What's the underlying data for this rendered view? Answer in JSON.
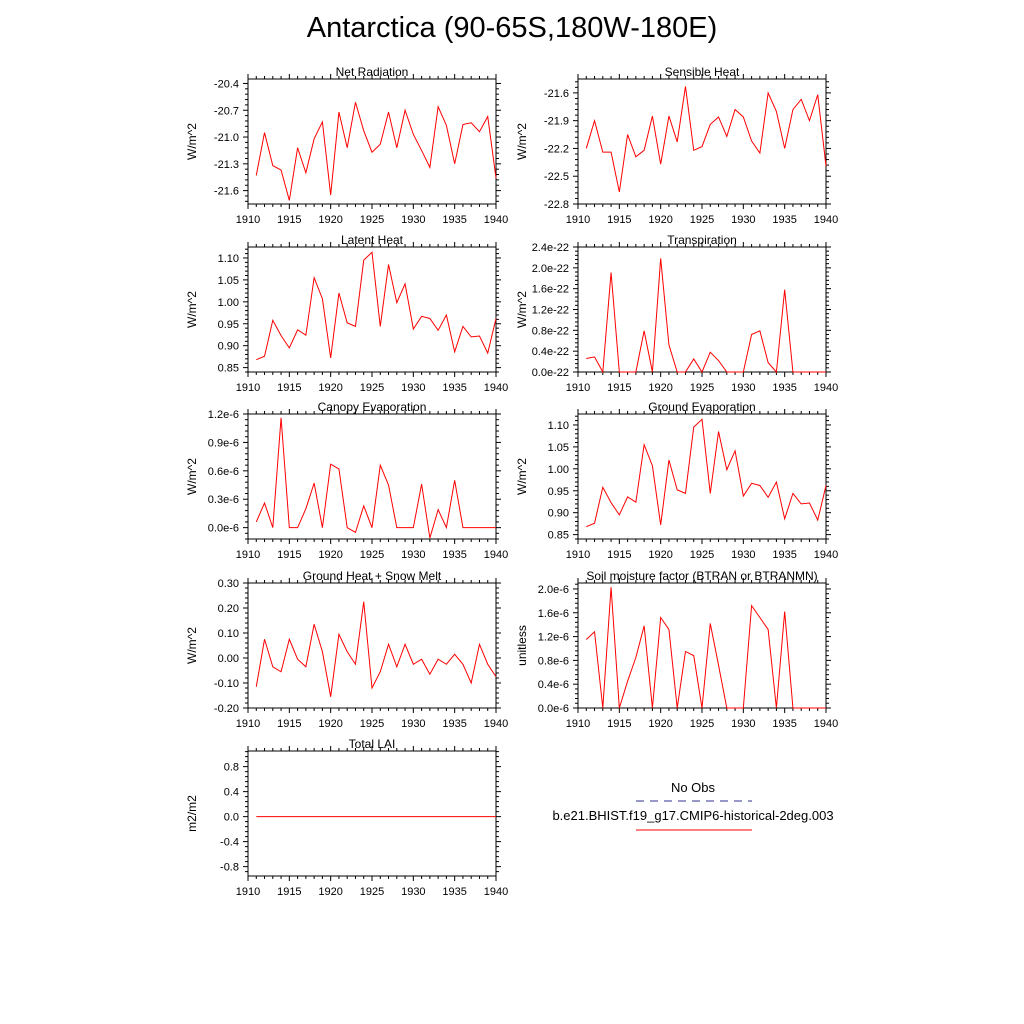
{
  "title": "Antarctica (90-65S,180W-180E)",
  "colors": {
    "model": "#ff0000",
    "obs": "#5a5aa8",
    "axis": "#000000"
  },
  "legend": {
    "obs_label": "No Obs",
    "model_label": "b.e21.BHIST.f19_g17.CMIP6-historical-2deg.003"
  },
  "chart_data": [
    {
      "type": "line",
      "title": "Net Radiation",
      "ylabel": "W/m^2",
      "xlim": [
        1910,
        1940
      ],
      "ylim": [
        -21.75,
        -20.35
      ],
      "xticks": [
        1910,
        1915,
        1920,
        1925,
        1930,
        1935,
        1940
      ],
      "yticks": [
        -21.6,
        -21.3,
        -21.0,
        -20.7,
        -20.4
      ],
      "ytick_labels": [
        "-21.6",
        "-21.3",
        "-21.0",
        "-20.7",
        "-20.4"
      ],
      "x": [
        1911,
        1912,
        1913,
        1914,
        1915,
        1916,
        1917,
        1918,
        1919,
        1920,
        1921,
        1922,
        1923,
        1924,
        1925,
        1926,
        1927,
        1928,
        1929,
        1930,
        1931,
        1932,
        1933,
        1934,
        1935,
        1936,
        1937,
        1938,
        1939,
        1940
      ],
      "series": [
        {
          "values": [
            -21.43,
            -20.95,
            -21.32,
            -21.37,
            -21.71,
            -21.12,
            -21.4,
            -21.02,
            -20.83,
            -21.65,
            -20.72,
            -21.12,
            -20.61,
            -20.93,
            -21.17,
            -21.08,
            -20.72,
            -21.12,
            -20.7,
            -20.97,
            -21.15,
            -21.34,
            -20.66,
            -20.87,
            -21.3,
            -20.86,
            -20.84,
            -20.94,
            -20.77,
            -21.46
          ]
        }
      ]
    },
    {
      "type": "line",
      "title": "Sensible Heat",
      "ylabel": "W/m^2",
      "xlim": [
        1910,
        1940
      ],
      "ylim": [
        -22.8,
        -21.45
      ],
      "xticks": [
        1910,
        1915,
        1920,
        1925,
        1930,
        1935,
        1940
      ],
      "yticks": [
        -22.8,
        -22.5,
        -22.2,
        -21.9,
        -21.6
      ],
      "ytick_labels": [
        "-22.8",
        "-22.5",
        "-22.2",
        "-21.9",
        "-21.6"
      ],
      "x": [
        1911,
        1912,
        1913,
        1914,
        1915,
        1916,
        1917,
        1918,
        1919,
        1920,
        1921,
        1922,
        1923,
        1924,
        1925,
        1926,
        1927,
        1928,
        1929,
        1930,
        1931,
        1932,
        1933,
        1934,
        1935,
        1936,
        1937,
        1938,
        1939,
        1940
      ],
      "series": [
        {
          "values": [
            -22.2,
            -21.9,
            -22.24,
            -22.24,
            -22.67,
            -22.05,
            -22.29,
            -22.22,
            -21.85,
            -22.37,
            -21.85,
            -22.13,
            -21.53,
            -22.22,
            -22.18,
            -21.94,
            -21.86,
            -22.07,
            -21.78,
            -21.86,
            -22.12,
            -22.25,
            -21.6,
            -21.8,
            -22.2,
            -21.78,
            -21.67,
            -21.9,
            -21.62,
            -22.39
          ]
        }
      ]
    },
    {
      "type": "line",
      "title": "Latent Heat",
      "ylabel": "W/m^2",
      "xlim": [
        1910,
        1940
      ],
      "ylim": [
        0.84,
        1.125
      ],
      "xticks": [
        1910,
        1915,
        1920,
        1925,
        1930,
        1935,
        1940
      ],
      "yticks": [
        0.85,
        0.9,
        0.95,
        1.0,
        1.05,
        1.1
      ],
      "ytick_labels": [
        "0.85",
        "0.90",
        "0.95",
        "1.00",
        "1.05",
        "1.10"
      ],
      "x": [
        1911,
        1912,
        1913,
        1914,
        1915,
        1916,
        1917,
        1918,
        1919,
        1920,
        1921,
        1922,
        1923,
        1924,
        1925,
        1926,
        1927,
        1928,
        1929,
        1930,
        1931,
        1932,
        1933,
        1934,
        1935,
        1936,
        1937,
        1938,
        1939,
        1940
      ],
      "series": [
        {
          "values": [
            0.868,
            0.876,
            0.958,
            0.923,
            0.895,
            0.936,
            0.924,
            1.055,
            1.007,
            0.872,
            1.02,
            0.952,
            0.944,
            1.095,
            1.113,
            0.944,
            1.085,
            0.998,
            1.041,
            0.938,
            0.967,
            0.962,
            0.935,
            0.97,
            0.886,
            0.944,
            0.92,
            0.922,
            0.883,
            0.962
          ]
        }
      ]
    },
    {
      "type": "line",
      "title": "Transpiration",
      "ylabel": "W/m^2",
      "xlim": [
        1910,
        1940
      ],
      "ylim": [
        0,
        2.4
      ],
      "y_unit_suffix": "e-22",
      "xticks": [
        1910,
        1915,
        1920,
        1925,
        1930,
        1935,
        1940
      ],
      "yticks": [
        0.0,
        0.4,
        0.8,
        1.2,
        1.6,
        2.0,
        2.4
      ],
      "ytick_labels": [
        "0.0e-22",
        "0.4e-22",
        "0.8e-22",
        "1.2e-22",
        "1.6e-22",
        "2.0e-22",
        "2.4e-22"
      ],
      "x": [
        1911,
        1912,
        1913,
        1914,
        1915,
        1916,
        1917,
        1918,
        1919,
        1920,
        1921,
        1922,
        1923,
        1924,
        1925,
        1926,
        1927,
        1928,
        1929,
        1930,
        1931,
        1932,
        1933,
        1934,
        1935,
        1936,
        1937,
        1938,
        1939,
        1940
      ],
      "series": [
        {
          "values": [
            0.26,
            0.29,
            0.0,
            1.91,
            0.0,
            0.0,
            0.0,
            0.79,
            0.0,
            2.18,
            0.52,
            0.0,
            0.0,
            0.25,
            0.0,
            0.38,
            0.22,
            0.0,
            0.0,
            0.0,
            0.72,
            0.79,
            0.18,
            0.0,
            1.58,
            0.0,
            0.0,
            0.0,
            0.0,
            0.0
          ]
        }
      ]
    },
    {
      "type": "line",
      "title": "Canopy Evaporation",
      "ylabel": "W/m^2",
      "xlim": [
        1910,
        1940
      ],
      "ylim": [
        -0.12,
        1.2
      ],
      "y_unit_suffix": "e-6",
      "xticks": [
        1910,
        1915,
        1920,
        1925,
        1930,
        1935,
        1940
      ],
      "yticks": [
        0.0,
        0.3,
        0.6,
        0.9,
        1.2
      ],
      "ytick_labels": [
        "0.0e-6",
        "0.3e-6",
        "0.6e-6",
        "0.9e-6",
        "1.2e-6"
      ],
      "x": [
        1911,
        1912,
        1913,
        1914,
        1915,
        1916,
        1917,
        1918,
        1919,
        1920,
        1921,
        1922,
        1923,
        1924,
        1925,
        1926,
        1927,
        1928,
        1929,
        1930,
        1931,
        1932,
        1933,
        1934,
        1935,
        1936,
        1937,
        1938,
        1939,
        1940
      ],
      "series": [
        {
          "values": [
            0.06,
            0.26,
            0.0,
            1.16,
            0.0,
            0.0,
            0.2,
            0.47,
            0.0,
            0.67,
            0.62,
            0.0,
            -0.05,
            0.23,
            0.0,
            0.66,
            0.45,
            0.0,
            0.0,
            0.0,
            0.46,
            -0.11,
            0.19,
            0.0,
            0.5,
            0.0,
            0.0,
            0.0,
            0.0,
            0.0
          ]
        }
      ]
    },
    {
      "type": "line",
      "title": "Ground Evaporation",
      "ylabel": "W/m^2",
      "xlim": [
        1910,
        1940
      ],
      "ylim": [
        0.84,
        1.125
      ],
      "xticks": [
        1910,
        1915,
        1920,
        1925,
        1930,
        1935,
        1940
      ],
      "yticks": [
        0.85,
        0.9,
        0.95,
        1.0,
        1.05,
        1.1
      ],
      "ytick_labels": [
        "0.85",
        "0.90",
        "0.95",
        "1.00",
        "1.05",
        "1.10"
      ],
      "x": [
        1911,
        1912,
        1913,
        1914,
        1915,
        1916,
        1917,
        1918,
        1919,
        1920,
        1921,
        1922,
        1923,
        1924,
        1925,
        1926,
        1927,
        1928,
        1929,
        1930,
        1931,
        1932,
        1933,
        1934,
        1935,
        1936,
        1937,
        1938,
        1939,
        1940
      ],
      "series": [
        {
          "values": [
            0.868,
            0.876,
            0.958,
            0.923,
            0.895,
            0.936,
            0.924,
            1.055,
            1.007,
            0.872,
            1.02,
            0.952,
            0.944,
            1.095,
            1.113,
            0.944,
            1.085,
            0.998,
            1.041,
            0.938,
            0.967,
            0.962,
            0.935,
            0.97,
            0.886,
            0.944,
            0.92,
            0.922,
            0.883,
            0.962
          ]
        }
      ]
    },
    {
      "type": "line",
      "title": "Ground Heat + Snow Melt",
      "ylabel": "W/m^2",
      "xlim": [
        1910,
        1940
      ],
      "ylim": [
        -0.2,
        0.3
      ],
      "xticks": [
        1910,
        1915,
        1920,
        1925,
        1930,
        1935,
        1940
      ],
      "yticks": [
        -0.2,
        -0.1,
        0.0,
        0.1,
        0.2,
        0.3
      ],
      "ytick_labels": [
        "-0.20",
        "-0.10",
        "0.00",
        "0.10",
        "0.20",
        "0.30"
      ],
      "x": [
        1911,
        1912,
        1913,
        1914,
        1915,
        1916,
        1917,
        1918,
        1919,
        1920,
        1921,
        1922,
        1923,
        1924,
        1925,
        1926,
        1927,
        1928,
        1929,
        1930,
        1931,
        1932,
        1933,
        1934,
        1935,
        1936,
        1937,
        1938,
        1939,
        1940
      ],
      "series": [
        {
          "values": [
            -0.115,
            0.075,
            -0.035,
            -0.055,
            0.075,
            -0.005,
            -0.035,
            0.135,
            0.025,
            -0.155,
            0.095,
            0.025,
            -0.025,
            0.225,
            -0.12,
            -0.055,
            0.055,
            -0.035,
            0.055,
            -0.025,
            -0.005,
            -0.065,
            -0.005,
            -0.025,
            0.015,
            -0.025,
            -0.1,
            0.055,
            -0.025,
            -0.075
          ]
        }
      ]
    },
    {
      "type": "line",
      "title": "Soil moisture factor (BTRAN or BTRANMN)",
      "ylabel": "unitless",
      "xlim": [
        1910,
        1940
      ],
      "ylim": [
        0,
        2.1
      ],
      "y_unit_suffix": "e-6",
      "xticks": [
        1910,
        1915,
        1920,
        1925,
        1930,
        1935,
        1940
      ],
      "yticks": [
        0.0,
        0.4,
        0.8,
        1.2,
        1.6,
        2.0
      ],
      "ytick_labels": [
        "0.0e-6",
        "0.4e-6",
        "0.8e-6",
        "1.2e-6",
        "1.6e-6",
        "2.0e-6"
      ],
      "x": [
        1911,
        1912,
        1913,
        1914,
        1915,
        1916,
        1917,
        1918,
        1919,
        1920,
        1921,
        1922,
        1923,
        1924,
        1925,
        1926,
        1927,
        1928,
        1929,
        1930,
        1931,
        1932,
        1933,
        1934,
        1935,
        1936,
        1937,
        1938,
        1939,
        1940
      ],
      "series": [
        {
          "values": [
            1.15,
            1.28,
            0.0,
            2.03,
            0.0,
            0.45,
            0.85,
            1.38,
            0.0,
            1.52,
            1.32,
            0.0,
            0.95,
            0.88,
            0.0,
            1.42,
            0.72,
            0.0,
            0.0,
            0.0,
            1.72,
            1.52,
            1.32,
            0.0,
            1.62,
            0.0,
            0.0,
            0.0,
            0.0,
            0.0
          ]
        }
      ]
    },
    {
      "type": "line",
      "title": "Total LAI",
      "ylabel": "m2/m2",
      "xlim": [
        1910,
        1940
      ],
      "ylim": [
        -0.95,
        1.05
      ],
      "xticks": [
        1910,
        1915,
        1920,
        1925,
        1930,
        1935,
        1940
      ],
      "yticks": [
        -0.8,
        -0.4,
        0.0,
        0.4,
        0.8
      ],
      "ytick_labels": [
        "-0.8",
        "-0.4",
        "0.0",
        "0.4",
        "0.8"
      ],
      "x": [
        1911,
        1940
      ],
      "series": [
        {
          "values": [
            0.0,
            0.0
          ]
        }
      ]
    }
  ]
}
